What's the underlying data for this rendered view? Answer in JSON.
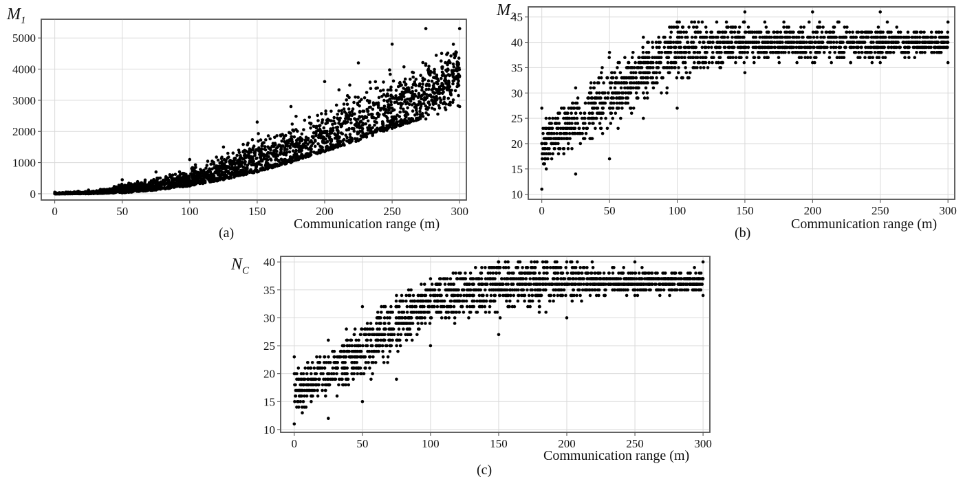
{
  "chart_data": [
    {
      "type": "scatter",
      "panel": "(a)",
      "ylabel_main": "M",
      "ylabel_sub": "1",
      "xlabel": "Communication range (m)",
      "xlim": [
        -10,
        305
      ],
      "ylim": [
        -200,
        5600
      ],
      "xticks": [
        0,
        50,
        100,
        150,
        200,
        250,
        300
      ],
      "yticks": [
        0,
        1000,
        2000,
        3000,
        4000,
        5000
      ],
      "grid": true,
      "trend": "approximately 0.042 * x^2, rising from about 0 at x=0 to about 3800 at x=300, spread widening with range",
      "series": [
        {
          "x": [
            0,
            25,
            50,
            75,
            100,
            125,
            150,
            175,
            200,
            225,
            250,
            275,
            300
          ],
          "y_center": [
            0,
            30,
            110,
            250,
            440,
            700,
            1000,
            1350,
            1750,
            2150,
            2650,
            3200,
            3800
          ],
          "y_min": [
            0,
            0,
            30,
            120,
            250,
            450,
            700,
            1000,
            1350,
            1700,
            2100,
            2400,
            2800
          ],
          "y_max": [
            50,
            120,
            450,
            700,
            1100,
            1500,
            2300,
            2800,
            3600,
            4200,
            4800,
            5300,
            5300
          ]
        }
      ]
    },
    {
      "type": "scatter",
      "panel": "(b)",
      "ylabel_main": "M",
      "ylabel_sub": "2",
      "xlabel": "Communication range (m)",
      "xlim": [
        -10,
        305
      ],
      "ylim": [
        9,
        47
      ],
      "xticks": [
        0,
        50,
        100,
        150,
        200,
        250,
        300
      ],
      "yticks": [
        10,
        15,
        20,
        25,
        30,
        35,
        40,
        45
      ],
      "grid": true,
      "trend": "integer values rising from about 20 near x=0 to a plateau of about 40 beyond x=100",
      "series": [
        {
          "x": [
            0,
            25,
            50,
            75,
            100,
            150,
            200,
            250,
            300
          ],
          "y_center": [
            20,
            24,
            29,
            34,
            39,
            40,
            40,
            40,
            40
          ],
          "y_min": [
            11,
            14,
            17,
            25,
            27,
            34,
            36,
            36,
            36
          ],
          "y_max": [
            27,
            31,
            38,
            41,
            44,
            46,
            46,
            46,
            44
          ]
        }
      ]
    },
    {
      "type": "scatter",
      "panel": "(c)",
      "ylabel_main": "N",
      "ylabel_sub": "C",
      "xlabel": "Communication range (m)",
      "xlim": [
        -10,
        305
      ],
      "ylim": [
        9.5,
        41
      ],
      "xticks": [
        0,
        50,
        100,
        150,
        200,
        250,
        300
      ],
      "yticks": [
        10,
        15,
        20,
        25,
        30,
        35,
        40
      ],
      "grid": true,
      "trend": "integer values rising from about 17 near x=0 to a plateau of about 36.5 beyond x=120",
      "series": [
        {
          "x": [
            0,
            25,
            50,
            75,
            100,
            150,
            200,
            250,
            300
          ],
          "y_center": [
            17,
            20,
            24,
            29,
            33,
            36,
            36.5,
            36.5,
            36.5
          ],
          "y_min": [
            11,
            12,
            15,
            19,
            25,
            27,
            30,
            34,
            34
          ],
          "y_max": [
            23,
            26,
            32,
            34,
            37,
            40,
            40,
            40,
            40
          ]
        }
      ]
    }
  ]
}
